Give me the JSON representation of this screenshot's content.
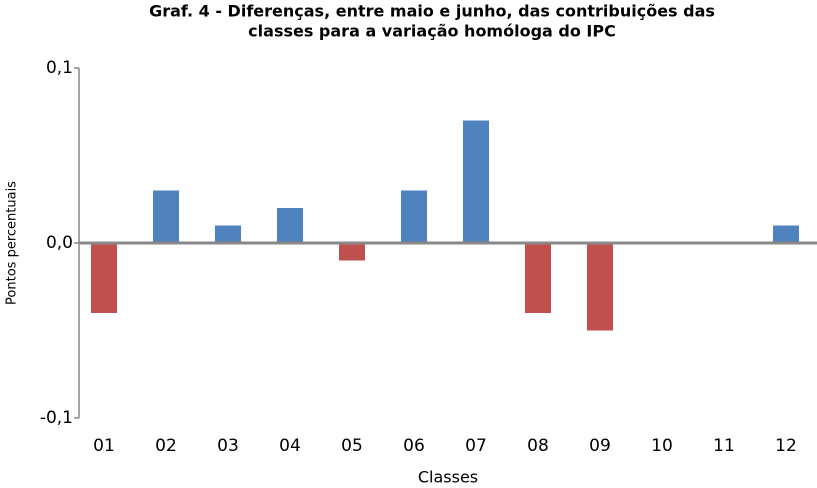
{
  "chart_data": {
    "type": "bar",
    "title": [
      "Graf. 4 - Diferenças, entre maio e junho, das contribuições das",
      "classes para a variação homóloga do IPC"
    ],
    "x_label": "Classes",
    "y_label": "Pontos percentuais",
    "categories": [
      "01",
      "02",
      "03",
      "04",
      "05",
      "06",
      "07",
      "08",
      "09",
      "10",
      "11",
      "12"
    ],
    "values": [
      -0.04,
      0.03,
      0.01,
      0.02,
      -0.01,
      0.03,
      0.07,
      -0.04,
      -0.05,
      0,
      0,
      0.01
    ],
    "positive_color": "#4f81bd",
    "negative_color": "#c0504d",
    "ylim": [
      -0.1,
      0.1
    ],
    "yticks": [
      {
        "value": -0.1,
        "label": "-0,1"
      },
      {
        "value": 0,
        "label": "0,0"
      },
      {
        "value": 0.1,
        "label": "0,1"
      }
    ],
    "grid": false
  }
}
